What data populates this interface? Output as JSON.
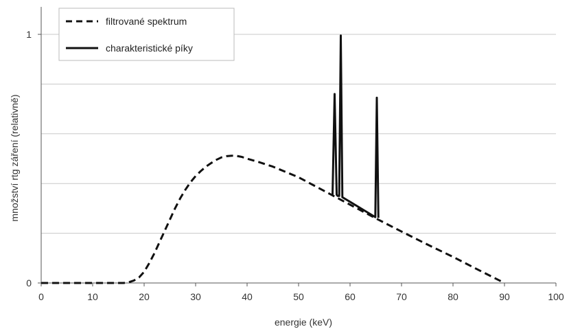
{
  "chart_data": {
    "type": "line",
    "xlabel": "energie (keV)",
    "ylabel": "množství rtg záření (relativně)",
    "xlim": [
      0,
      100
    ],
    "ylim": [
      0,
      1
    ],
    "x_ticks": [
      "0",
      "10",
      "20",
      "30",
      "40",
      "50",
      "60",
      "70",
      "80",
      "90",
      "100"
    ],
    "y_tick_labels": [
      {
        "value": 0,
        "label": "0"
      },
      {
        "value": 1,
        "label": "1"
      }
    ],
    "y_gridlines": [
      0.2,
      0.4,
      0.6,
      0.8,
      1.0
    ],
    "grid": true,
    "legend_position": "top-left",
    "series": [
      {
        "name": "filtrované spektrum",
        "style": "dashed",
        "color": "#111111",
        "x": [
          0,
          10,
          16,
          17,
          18,
          19,
          20,
          21,
          22,
          23,
          24,
          25,
          26,
          27,
          28,
          29,
          30,
          31,
          32,
          33,
          34,
          35,
          36,
          37,
          38,
          39,
          40,
          42,
          45,
          50,
          55,
          60,
          65,
          70,
          75,
          80,
          85,
          90
        ],
        "y": [
          0,
          0,
          0,
          0.003,
          0.01,
          0.022,
          0.045,
          0.08,
          0.12,
          0.165,
          0.21,
          0.255,
          0.3,
          0.34,
          0.375,
          0.405,
          0.43,
          0.45,
          0.468,
          0.482,
          0.495,
          0.505,
          0.51,
          0.512,
          0.511,
          0.507,
          0.5,
          0.488,
          0.468,
          0.425,
          0.37,
          0.315,
          0.26,
          0.207,
          0.155,
          0.105,
          0.052,
          0
        ]
      },
      {
        "name": "charakteristické píky",
        "style": "solid",
        "color": "#111111",
        "x": [
          56.6,
          57.0,
          57.4,
          57.6,
          57.9,
          58.2,
          58.5,
          64.9,
          65.2,
          65.5
        ],
        "y": [
          0.355,
          0.76,
          0.355,
          0.35,
          0.35,
          0.995,
          0.345,
          0.265,
          0.745,
          0.262
        ]
      }
    ]
  }
}
